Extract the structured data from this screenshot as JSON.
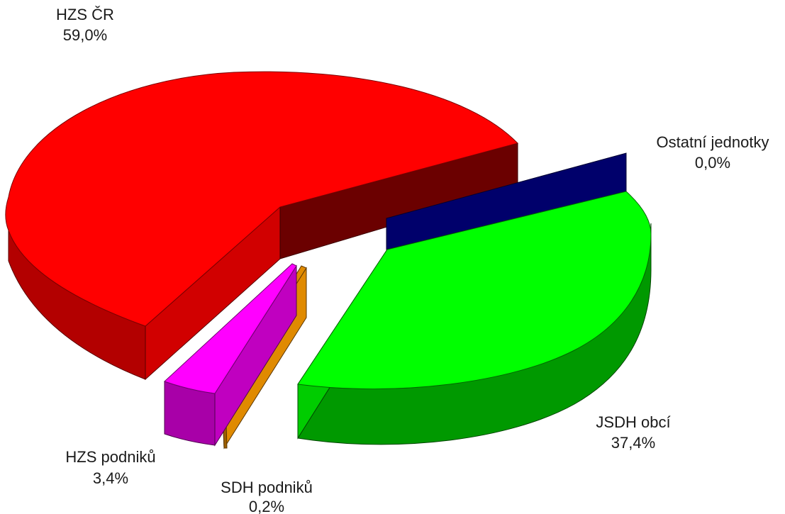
{
  "chart_data": {
    "type": "pie",
    "title": "",
    "style": "3d-exploded",
    "slices": [
      {
        "name": "HZS ČR",
        "value": 59.0,
        "label": "59,0%",
        "color": "#ff0000",
        "side_color": "#b30000",
        "inner_color": "#6b0000"
      },
      {
        "name": "Ostatní jednotky",
        "value": 0.0,
        "label": "0,0%",
        "color": "#00006b",
        "side_color": "#00004a",
        "inner_color": "#00004a"
      },
      {
        "name": "JSDH obcí",
        "value": 37.4,
        "label": "37,4%",
        "color": "#00ff00",
        "side_color": "#009900",
        "inner_color": "#006600"
      },
      {
        "name": "SDH podniků",
        "value": 0.2,
        "label": "0,2%",
        "color": "#e08a00",
        "side_color": "#9c5f00",
        "inner_color": "#b06c00"
      },
      {
        "name": "HZS podniků",
        "value": 3.4,
        "label": "3,4%",
        "color": "#ff00ff",
        "side_color": "#a800a8",
        "inner_color": "#c000c0"
      }
    ]
  }
}
